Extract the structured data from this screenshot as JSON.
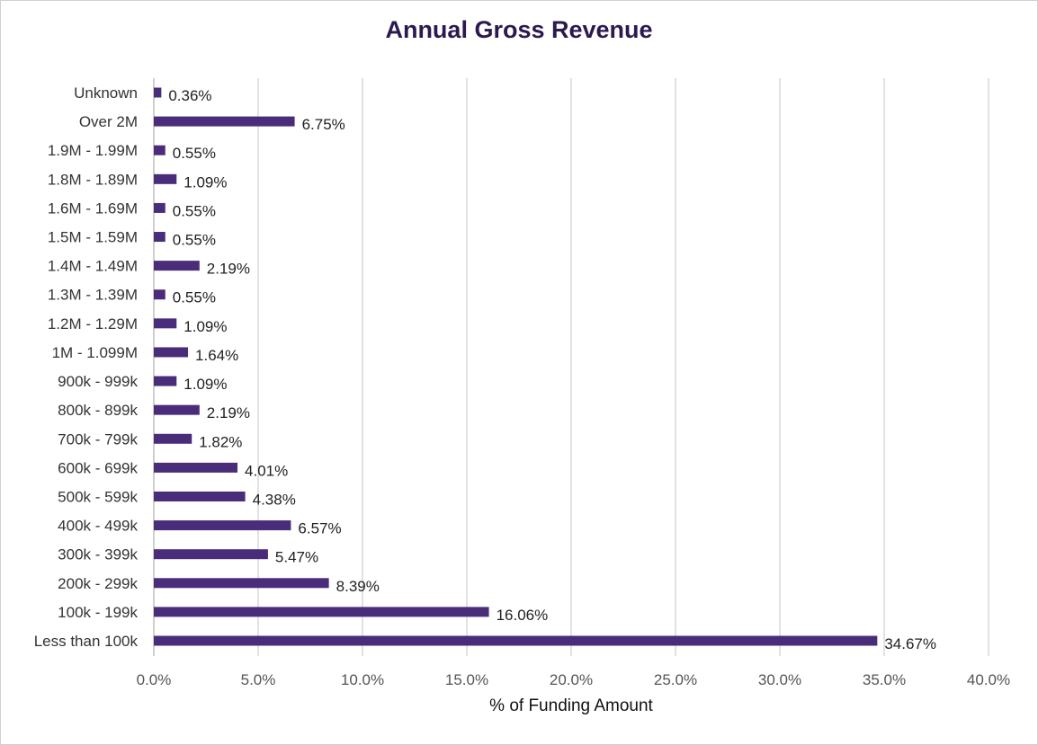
{
  "chart_data": {
    "type": "bar",
    "orientation": "horizontal",
    "title": "Annual Gross Revenue",
    "xlabel": "% of Funding Amount",
    "ylabel": "",
    "xlim": [
      0,
      40
    ],
    "x_ticks": [
      "0.0%",
      "5.0%",
      "10.0%",
      "15.0%",
      "20.0%",
      "25.0%",
      "30.0%",
      "35.0%",
      "40.0%"
    ],
    "grid": "vertical",
    "legend": "none",
    "bar_color": "#4a2d7a",
    "categories": [
      "Unknown",
      "Over 2M",
      "1.9M - 1.99M",
      "1.8M - 1.89M",
      "1.6M - 1.69M",
      "1.5M - 1.59M",
      "1.4M - 1.49M",
      "1.3M - 1.39M",
      "1.2M - 1.29M",
      "1M - 1.099M",
      "900k - 999k",
      "800k - 899k",
      "700k - 799k",
      "600k - 699k",
      "500k - 599k",
      "400k - 499k",
      "300k - 399k",
      "200k - 299k",
      "100k - 199k",
      "Less than 100k"
    ],
    "values": [
      0.36,
      6.75,
      0.55,
      1.09,
      0.55,
      0.55,
      2.19,
      0.55,
      1.09,
      1.64,
      1.09,
      2.19,
      1.82,
      4.01,
      4.38,
      6.57,
      5.47,
      8.39,
      16.06,
      34.67
    ],
    "data_labels": [
      "0.36%",
      "6.75%",
      "0.55%",
      "1.09%",
      "0.55%",
      "0.55%",
      "2.19%",
      "0.55%",
      "1.09%",
      "1.64%",
      "1.09%",
      "2.19%",
      "1.82%",
      "4.01%",
      "4.38%",
      "6.57%",
      "5.47%",
      "8.39%",
      "16.06%",
      "34.67%"
    ]
  }
}
